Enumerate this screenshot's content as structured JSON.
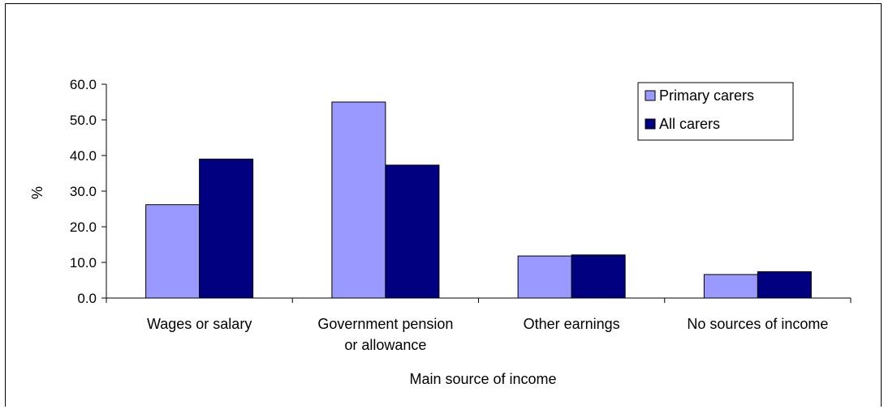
{
  "chart_data": {
    "type": "bar",
    "categories": [
      [
        "Wages or salary"
      ],
      [
        "Government pension",
        "or allowance"
      ],
      [
        "Other earnings"
      ],
      [
        "No sources of income"
      ]
    ],
    "series": [
      {
        "name": "Primary carers",
        "color": "#9999ff",
        "values": [
          26.2,
          55.0,
          11.8,
          6.6
        ]
      },
      {
        "name": "All carers",
        "color": "#000080",
        "values": [
          39.0,
          37.3,
          12.1,
          7.4
        ]
      }
    ],
    "xlabel": "Main source of income",
    "ylabel": "%",
    "ylim": [
      0,
      60
    ],
    "yticks": [
      "0.0",
      "10.0",
      "20.0",
      "30.0",
      "40.0",
      "50.0",
      "60.0"
    ],
    "legend_position": "top-right",
    "grid": false
  }
}
